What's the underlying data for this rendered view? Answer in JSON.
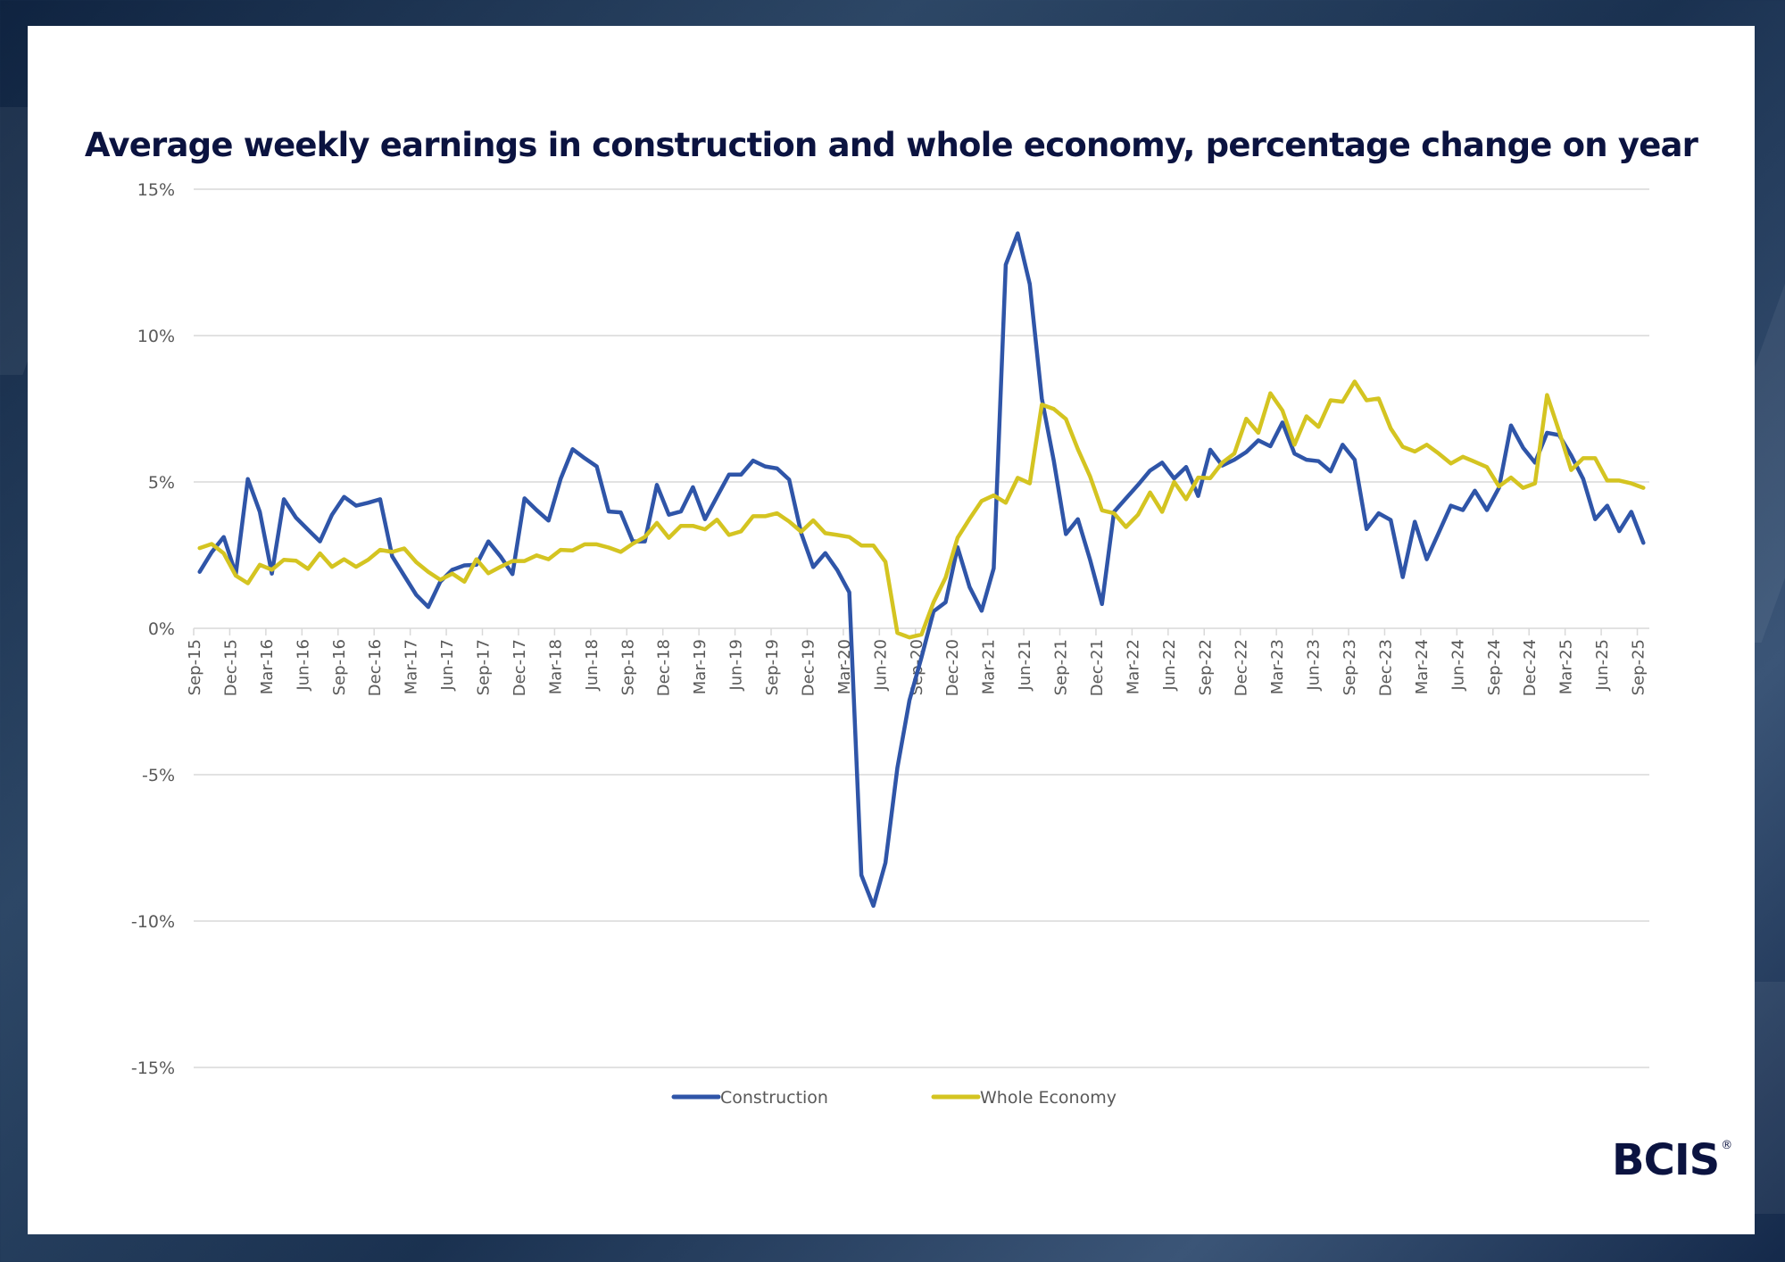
{
  "chart_data": {
    "type": "line",
    "title": "Average weekly earnings in construction and whole economy, percentage change on year",
    "xlabel": "",
    "ylabel": "",
    "ylim": [
      -15,
      15
    ],
    "yticks": [
      15,
      10,
      5,
      0,
      -5,
      -10,
      -15
    ],
    "ytick_labels": [
      "15%",
      "10%",
      "5%",
      "0%",
      "-5%",
      "-10%",
      "-15%"
    ],
    "grid": true,
    "legend_position": "bottom",
    "x_start": "Sep-15",
    "x_end": "Sep-25",
    "x_frequency": "monthly",
    "x_tick_labels": [
      "Sep-15",
      "Dec-15",
      "Mar-16",
      "Jun-16",
      "Sep-16",
      "Dec-16",
      "Mar-17",
      "Jun-17",
      "Sep-17",
      "Dec-17",
      "Mar-18",
      "Jun-18",
      "Sep-18",
      "Dec-18",
      "Mar-19",
      "Jun-19",
      "Sep-19",
      "Dec-19",
      "Mar-20",
      "Jun-20",
      "Sep-20",
      "Dec-20",
      "Mar-21",
      "Jun-21",
      "Sep-21",
      "Dec-21",
      "Mar-22",
      "Jun-22",
      "Sep-22",
      "Dec-22",
      "Mar-23",
      "Jun-23",
      "Sep-23",
      "Dec-23",
      "Mar-24",
      "Jun-24",
      "Sep-24",
      "Dec-24",
      "Mar-25",
      "Jun-25",
      "Sep-25"
    ],
    "series": [
      {
        "name": "Construction",
        "color": "#2f55a8",
        "values": [
          1.93,
          2.6,
          3.12,
          1.85,
          5.1,
          3.98,
          1.87,
          4.41,
          3.78,
          3.37,
          2.97,
          3.88,
          4.49,
          4.19,
          4.29,
          4.41,
          2.46,
          1.8,
          1.14,
          0.73,
          1.59,
          2.0,
          2.15,
          2.17,
          2.97,
          2.46,
          1.85,
          4.44,
          4.04,
          3.68,
          5.1,
          6.12,
          5.81,
          5.53,
          3.99,
          3.96,
          2.97,
          2.97,
          4.9,
          3.88,
          3.99,
          4.82,
          3.73,
          4.5,
          5.25,
          5.25,
          5.73,
          5.53,
          5.46,
          5.08,
          3.25,
          2.09,
          2.57,
          1.99,
          1.23,
          -8.43,
          -9.48,
          -8.01,
          -4.76,
          -2.46,
          -0.99,
          0.58,
          0.89,
          2.77,
          1.41,
          0.6,
          2.05,
          12.42,
          13.49,
          11.76,
          7.85,
          5.71,
          3.22,
          3.73,
          2.36,
          0.83,
          3.98,
          4.44,
          4.9,
          5.39,
          5.66,
          5.12,
          5.51,
          4.52,
          6.1,
          5.56,
          5.76,
          6.02,
          6.42,
          6.22,
          7.03,
          5.97,
          5.76,
          5.71,
          5.36,
          6.27,
          5.76,
          3.39,
          3.93,
          3.7,
          1.75,
          3.64,
          2.36,
          3.27,
          4.19,
          4.04,
          4.7,
          4.04,
          4.8,
          6.93,
          6.17,
          5.66,
          6.68,
          6.6,
          5.91,
          5.1,
          3.73,
          4.19,
          3.32,
          3.98,
          2.92
        ]
      },
      {
        "name": "Whole Economy",
        "color": "#d4c421",
        "values": [
          2.74,
          2.88,
          2.56,
          1.8,
          1.54,
          2.17,
          2.0,
          2.34,
          2.31,
          2.03,
          2.56,
          2.1,
          2.36,
          2.1,
          2.34,
          2.68,
          2.61,
          2.73,
          2.26,
          1.93,
          1.66,
          1.87,
          1.59,
          2.36,
          1.88,
          2.1,
          2.3,
          2.3,
          2.49,
          2.36,
          2.68,
          2.66,
          2.87,
          2.87,
          2.76,
          2.61,
          2.89,
          3.12,
          3.6,
          3.09,
          3.5,
          3.5,
          3.38,
          3.71,
          3.19,
          3.31,
          3.83,
          3.83,
          3.93,
          3.65,
          3.3,
          3.69,
          3.25,
          3.19,
          3.12,
          2.83,
          2.83,
          2.27,
          -0.16,
          -0.31,
          -0.21,
          0.89,
          1.73,
          3.09,
          3.74,
          4.35,
          4.54,
          4.29,
          5.14,
          4.95,
          7.64,
          7.49,
          7.15,
          6.12,
          5.2,
          4.03,
          3.93,
          3.46,
          3.88,
          4.64,
          3.98,
          5.0,
          4.41,
          5.15,
          5.13,
          5.66,
          5.97,
          7.16,
          6.68,
          8.03,
          7.44,
          6.27,
          7.24,
          6.88,
          7.79,
          7.74,
          8.43,
          7.79,
          7.85,
          6.83,
          6.2,
          6.04,
          6.27,
          5.97,
          5.63,
          5.86,
          5.69,
          5.51,
          4.85,
          5.15,
          4.8,
          4.95,
          7.97,
          6.73,
          5.41,
          5.81,
          5.81,
          5.05,
          5.05,
          4.95,
          4.8
        ]
      }
    ]
  },
  "branding": {
    "logo_text": "BCIS",
    "logo_mark": "®"
  },
  "colors": {
    "title": "#0b1340",
    "gridline": "#d9d9d9",
    "tick_text": "#595959"
  }
}
